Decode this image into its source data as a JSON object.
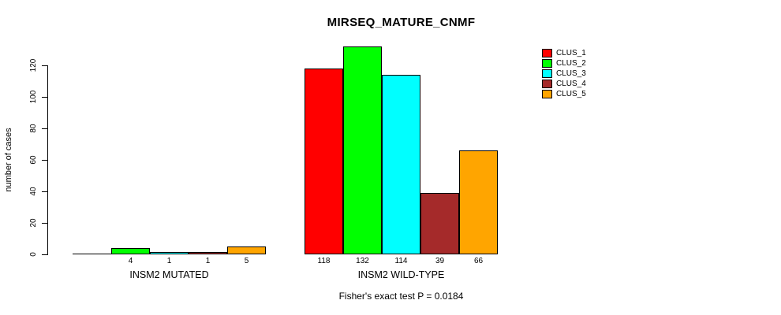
{
  "chart_data": {
    "type": "bar",
    "title": "MIRSEQ_MATURE_CNMF",
    "ylabel": "number of cases",
    "xlabel": "",
    "ylim": [
      0,
      132
    ],
    "yticks": [
      0,
      20,
      40,
      60,
      80,
      100,
      120
    ],
    "grid": false,
    "legend_position": "right-of-plot-top",
    "series": [
      {
        "name": "CLUS_1",
        "color": "#FF0000"
      },
      {
        "name": "CLUS_2",
        "color": "#00FF00"
      },
      {
        "name": "CLUS_3",
        "color": "#00FFFF"
      },
      {
        "name": "CLUS_4",
        "color": "#A52A2A"
      },
      {
        "name": "CLUS_5",
        "color": "#FFA500"
      }
    ],
    "groups": [
      {
        "label": "INSM2 MUTATED",
        "values": [
          0,
          4,
          1,
          1,
          5
        ],
        "bar_labels": [
          "",
          "4",
          "1",
          "1",
          "5"
        ]
      },
      {
        "label": "INSM2 WILD-TYPE",
        "values": [
          118,
          132,
          114,
          39,
          66
        ],
        "bar_labels": [
          "118",
          "132",
          "114",
          "39",
          "66"
        ]
      }
    ],
    "annotation": "Fisher's exact test P = 0.0184"
  }
}
